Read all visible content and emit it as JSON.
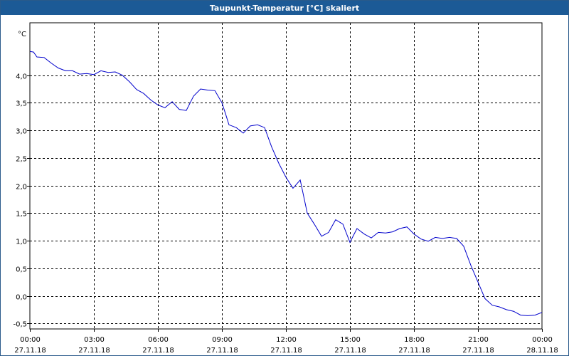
{
  "window": {
    "title": "Taupunkt-Temperatur [°C] skaliert"
  },
  "chart_data": {
    "type": "line",
    "title": "Taupunkt-Temperatur [°C] skaliert",
    "unit_label": "°C",
    "xlabel": "",
    "ylabel": "",
    "ylim": [
      -0.6,
      4.95
    ],
    "yticks": [
      -0.5,
      0.0,
      0.5,
      1.0,
      1.5,
      2.0,
      2.5,
      3.0,
      3.5,
      4.0
    ],
    "ytick_labels": [
      "-0,5",
      "0,0",
      "0,5",
      "1,0",
      "1,5",
      "2,0",
      "2,5",
      "3,0",
      "3,5",
      "4,0"
    ],
    "xlim": [
      0,
      24
    ],
    "xticks": [
      0,
      3,
      6,
      9,
      12,
      15,
      18,
      21,
      24
    ],
    "xtick_labels": [
      [
        "00:00",
        "27.11.18"
      ],
      [
        "03:00",
        "27.11.18"
      ],
      [
        "06:00",
        "27.11.18"
      ],
      [
        "09:00",
        "27.11.18"
      ],
      [
        "12:00",
        "27.11.18"
      ],
      [
        "15:00",
        "27.11.18"
      ],
      [
        "18:00",
        "27.11.18"
      ],
      [
        "21:00",
        "27.11.18"
      ],
      [
        "00:00",
        "28.11.18"
      ]
    ],
    "grid": true,
    "series": [
      {
        "name": "",
        "color": "#0000cc",
        "x": [
          0.0,
          0.17,
          0.33,
          0.67,
          1.0,
          1.33,
          1.67,
          2.0,
          2.33,
          2.67,
          3.0,
          3.33,
          3.67,
          4.0,
          4.33,
          4.67,
          5.0,
          5.33,
          5.67,
          6.0,
          6.33,
          6.67,
          7.0,
          7.33,
          7.67,
          8.0,
          8.33,
          8.67,
          9.0,
          9.17,
          9.33,
          9.67,
          10.0,
          10.33,
          10.67,
          11.0,
          11.33,
          11.67,
          12.0,
          12.33,
          12.67,
          13.0,
          13.33,
          13.67,
          14.0,
          14.33,
          14.67,
          15.0,
          15.33,
          15.67,
          16.0,
          16.33,
          16.67,
          17.0,
          17.33,
          17.67,
          18.0,
          18.33,
          18.67,
          19.0,
          19.33,
          19.67,
          20.0,
          20.33,
          20.67,
          21.0,
          21.33,
          21.67,
          22.0,
          22.33,
          22.67,
          23.0,
          23.33,
          23.67,
          24.0
        ],
        "y": [
          4.43,
          4.42,
          4.33,
          4.32,
          4.22,
          4.13,
          4.08,
          4.08,
          4.02,
          4.03,
          4.01,
          4.08,
          4.05,
          4.06,
          4.0,
          3.88,
          3.74,
          3.67,
          3.55,
          3.46,
          3.41,
          3.52,
          3.38,
          3.36,
          3.62,
          3.75,
          3.73,
          3.72,
          3.5,
          3.3,
          3.1,
          3.05,
          2.95,
          3.08,
          3.1,
          3.05,
          2.7,
          2.4,
          2.15,
          1.95,
          2.1,
          1.5,
          1.3,
          1.08,
          1.15,
          1.38,
          1.3,
          0.97,
          1.22,
          1.12,
          1.05,
          1.15,
          1.14,
          1.16,
          1.22,
          1.25,
          1.12,
          1.03,
          0.99,
          1.06,
          1.04,
          1.06,
          1.04,
          0.9,
          0.55,
          0.25,
          -0.05,
          -0.17,
          -0.2,
          -0.25,
          -0.28,
          -0.35,
          -0.36,
          -0.35,
          -0.3
        ]
      }
    ]
  }
}
